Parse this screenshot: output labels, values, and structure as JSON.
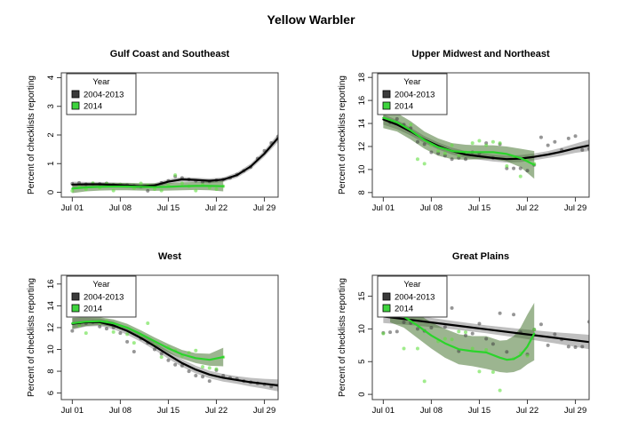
{
  "figure": {
    "title": "Yellow Warbler"
  },
  "shared": {
    "ylabel": "Percent of checklists reporting",
    "xlim": [
      -0.6,
      31
    ],
    "x_tick_days": [
      1,
      8,
      15,
      22,
      29
    ],
    "x_tick_labels": [
      "Jul 01",
      "Jul 08",
      "Jul 15",
      "Jul 22",
      "Jul 29"
    ],
    "legend": {
      "title": "Year",
      "entries": [
        {
          "label": "2004-2013",
          "color": "#3b3b3b"
        },
        {
          "label": "2014",
          "color": "#3ed43e"
        }
      ]
    },
    "colors": {
      "lineHist": "#000000",
      "line2014": "#2bd42b",
      "bandHist": "rgba(0,0,0,0.25)",
      "band2014": "rgba(58,108,34,0.5)",
      "pointHist": "rgba(64,64,64,0.55)",
      "point2014": "rgba(96,224,64,0.6)",
      "frame": "#3c3c3c"
    }
  },
  "chart_data": [
    {
      "type": "line",
      "title": "Gulf Coast and Southeast",
      "ylim": [
        -0.17,
        4.17
      ],
      "yticks": [
        0,
        1,
        2,
        3,
        4
      ],
      "series": [
        {
          "name": "2004-2013",
          "x": [
            1,
            3,
            5,
            7,
            9,
            11,
            13,
            15,
            17,
            19,
            21,
            23,
            25,
            27,
            29,
            31
          ],
          "y": [
            0.27,
            0.28,
            0.28,
            0.26,
            0.24,
            0.21,
            0.24,
            0.37,
            0.45,
            0.43,
            0.4,
            0.44,
            0.6,
            0.9,
            1.35,
            1.9
          ],
          "lo": [
            0.17,
            0.2,
            0.2,
            0.18,
            0.16,
            0.13,
            0.16,
            0.29,
            0.37,
            0.35,
            0.32,
            0.36,
            0.51,
            0.8,
            1.24,
            1.76
          ],
          "hi": [
            0.37,
            0.36,
            0.36,
            0.34,
            0.32,
            0.29,
            0.32,
            0.45,
            0.53,
            0.51,
            0.48,
            0.52,
            0.69,
            1.0,
            1.46,
            2.04
          ]
        },
        {
          "name": "2014",
          "x": [
            1,
            3,
            5,
            7,
            9,
            11,
            13,
            15,
            17,
            19,
            21,
            23
          ],
          "y": [
            0.13,
            0.17,
            0.19,
            0.2,
            0.2,
            0.19,
            0.18,
            0.19,
            0.21,
            0.22,
            0.22,
            0.21
          ],
          "lo": [
            -0.03,
            0.03,
            0.06,
            0.07,
            0.07,
            0.06,
            0.05,
            0.06,
            0.07,
            0.08,
            0.07,
            0.03
          ],
          "hi": [
            0.29,
            0.31,
            0.32,
            0.33,
            0.33,
            0.32,
            0.31,
            0.32,
            0.35,
            0.36,
            0.37,
            0.39
          ]
        }
      ],
      "points": [
        {
          "name": "2004-2013",
          "x": [
            1,
            2,
            3,
            4,
            5,
            6,
            7,
            8,
            9,
            10,
            11,
            12,
            13,
            14,
            15,
            16,
            17,
            18,
            19,
            20,
            21,
            22,
            23,
            24,
            25,
            26,
            27,
            28,
            29,
            30,
            31
          ],
          "y": [
            0.3,
            0.33,
            0.28,
            0.3,
            0.29,
            0.31,
            0.26,
            0.27,
            0.25,
            0.22,
            0.2,
            0.05,
            0.22,
            0.33,
            0.4,
            0.55,
            0.5,
            0.45,
            0.4,
            0.36,
            0.38,
            0.42,
            0.45,
            0.5,
            0.62,
            0.75,
            0.88,
            1.18,
            1.45,
            1.72,
            1.95
          ]
        },
        {
          "name": "2014",
          "x": [
            1,
            2,
            3,
            4,
            5,
            6,
            7,
            8,
            9,
            10,
            11,
            12,
            13,
            14,
            15,
            16,
            17,
            18,
            19,
            20,
            21,
            22,
            23
          ],
          "y": [
            0.05,
            0.24,
            0.1,
            0.32,
            0.16,
            0.3,
            0.06,
            0.26,
            0.21,
            0.14,
            0.31,
            0.24,
            0.11,
            0.06,
            0.25,
            0.6,
            0.31,
            0.21,
            0.06,
            0.26,
            0.16,
            0.11,
            0.21
          ]
        }
      ]
    },
    {
      "type": "line",
      "title": "Upper Midwest and Northeast",
      "ylim": [
        7.6,
        18.4
      ],
      "yticks": [
        8,
        10,
        12,
        14,
        16,
        18
      ],
      "series": [
        {
          "name": "2004-2013",
          "x": [
            1,
            3,
            5,
            7,
            9,
            11,
            13,
            15,
            17,
            19,
            21,
            23,
            25,
            27,
            29,
            31
          ],
          "y": [
            14.35,
            13.9,
            13.3,
            12.6,
            12.05,
            11.6,
            11.3,
            11.15,
            11.0,
            10.9,
            10.95,
            11.1,
            11.3,
            11.55,
            11.85,
            12.1
          ],
          "lo": [
            13.9,
            13.5,
            12.95,
            12.3,
            11.75,
            11.3,
            11.0,
            10.85,
            10.7,
            10.6,
            10.65,
            10.8,
            11.0,
            11.2,
            11.45,
            11.6
          ],
          "hi": [
            14.8,
            14.3,
            13.65,
            12.9,
            12.35,
            11.9,
            11.6,
            11.45,
            11.3,
            11.2,
            11.25,
            11.4,
            11.6,
            11.9,
            12.25,
            12.6
          ]
        },
        {
          "name": "2014",
          "x": [
            1,
            3,
            5,
            7,
            9,
            11,
            13,
            15,
            17,
            19,
            21,
            23
          ],
          "y": [
            14.5,
            14.1,
            13.4,
            12.55,
            11.95,
            11.6,
            11.5,
            11.5,
            11.5,
            11.35,
            11.0,
            10.4
          ],
          "lo": [
            13.6,
            13.3,
            12.6,
            11.8,
            11.2,
            10.9,
            10.85,
            10.9,
            10.9,
            10.7,
            10.2,
            9.2
          ],
          "hi": [
            15.4,
            14.9,
            14.2,
            13.3,
            12.7,
            12.3,
            12.15,
            12.1,
            12.1,
            12.0,
            11.8,
            11.6
          ]
        }
      ],
      "points": [
        {
          "name": "2004-2013",
          "x": [
            2,
            3,
            4,
            5,
            6,
            7,
            8,
            9,
            10,
            11,
            12,
            13,
            14,
            15,
            16,
            17,
            18,
            19,
            20,
            21,
            22,
            23,
            24,
            25,
            26,
            27,
            28,
            29,
            30,
            31
          ],
          "y": [
            14.1,
            14.4,
            13.9,
            13.6,
            12.4,
            12.2,
            11.5,
            11.4,
            11.2,
            10.9,
            11.0,
            10.9,
            11.5,
            11.4,
            12.3,
            11.0,
            12.2,
            10.1,
            10.1,
            10.1,
            9.9,
            10.4,
            12.8,
            12.1,
            12.4,
            11.7,
            12.7,
            12.9,
            11.7,
            11.8
          ]
        },
        {
          "name": "2014",
          "x": [
            5,
            6,
            7,
            8,
            9,
            10,
            11,
            12,
            13,
            14,
            15,
            16,
            17,
            18,
            19,
            20,
            21,
            22,
            23
          ],
          "y": [
            13.9,
            10.9,
            10.5,
            12.1,
            11.6,
            11.4,
            12.1,
            11.2,
            11.5,
            12.3,
            12.5,
            12.1,
            12.4,
            12.3,
            10.3,
            11.0,
            9.4,
            10.8,
            10.5
          ]
        }
      ]
    },
    {
      "type": "line",
      "title": "West",
      "ylim": [
        5.4,
        16.8
      ],
      "yticks": [
        6,
        8,
        10,
        12,
        14,
        16
      ],
      "series": [
        {
          "name": "2004-2013",
          "x": [
            1,
            3,
            5,
            7,
            9,
            11,
            13,
            15,
            17,
            19,
            21,
            23,
            25,
            27,
            29,
            31
          ],
          "y": [
            12.35,
            12.5,
            12.5,
            12.2,
            11.7,
            11.05,
            10.3,
            9.5,
            8.75,
            8.15,
            7.7,
            7.4,
            7.2,
            7.0,
            6.85,
            6.7
          ],
          "lo": [
            11.8,
            12.1,
            12.15,
            11.85,
            11.35,
            10.7,
            9.95,
            9.15,
            8.4,
            7.8,
            7.35,
            7.05,
            6.85,
            6.6,
            6.4,
            6.15
          ],
          "hi": [
            12.9,
            12.9,
            12.85,
            12.55,
            12.05,
            11.4,
            10.65,
            9.85,
            9.1,
            8.5,
            8.05,
            7.75,
            7.55,
            7.4,
            7.3,
            7.25
          ]
        },
        {
          "name": "2014",
          "x": [
            1,
            3,
            5,
            7,
            9,
            11,
            13,
            15,
            17,
            19,
            21,
            23
          ],
          "y": [
            12.4,
            12.55,
            12.6,
            12.4,
            12.0,
            11.4,
            10.75,
            10.1,
            9.55,
            9.2,
            9.05,
            9.3
          ],
          "lo": [
            11.9,
            12.15,
            12.25,
            12.05,
            11.65,
            11.05,
            10.4,
            9.7,
            9.15,
            8.75,
            8.5,
            8.45
          ],
          "hi": [
            12.9,
            12.95,
            12.95,
            12.75,
            12.35,
            11.75,
            11.1,
            10.5,
            9.95,
            9.65,
            9.6,
            10.15
          ]
        }
      ],
      "points": [
        {
          "name": "2004-2013",
          "x": [
            1,
            2,
            3,
            4,
            5,
            6,
            7,
            8,
            9,
            10,
            11,
            12,
            13,
            14,
            15,
            16,
            17,
            18,
            19,
            20,
            21,
            22,
            23,
            24,
            25,
            26,
            27,
            28,
            29,
            30,
            31
          ],
          "y": [
            11.7,
            12.3,
            12.4,
            12.5,
            12.1,
            11.9,
            12.0,
            11.5,
            10.7,
            9.8,
            11.0,
            10.6,
            10.0,
            9.6,
            9.0,
            8.6,
            8.5,
            8.0,
            7.6,
            7.5,
            7.1,
            8.1,
            7.6,
            7.4,
            7.3,
            7.1,
            7.0,
            6.9,
            6.8,
            6.6,
            6.7
          ]
        },
        {
          "name": "2014",
          "x": [
            2,
            3,
            5,
            6,
            7,
            8,
            9,
            10,
            11,
            12,
            13,
            14,
            15,
            16,
            17,
            18,
            19,
            20,
            21,
            22,
            23
          ],
          "y": [
            12.2,
            11.5,
            12.4,
            12.6,
            11.6,
            12.0,
            11.4,
            10.6,
            11.2,
            12.4,
            10.4,
            9.3,
            10.2,
            9.9,
            9.4,
            9.7,
            9.9,
            8.4,
            8.3,
            8.2,
            9.3
          ]
        }
      ]
    },
    {
      "type": "line",
      "title": "Great Plains",
      "ylim": [
        -0.8,
        18.2
      ],
      "yticks": [
        0,
        5,
        10,
        15
      ],
      "series": [
        {
          "name": "2004-2013",
          "x": [
            1,
            6,
            11,
            16,
            21,
            26,
            31
          ],
          "y": [
            11.9,
            11.25,
            10.6,
            9.95,
            9.3,
            8.65,
            8.0
          ],
          "lo": [
            10.9,
            10.5,
            9.95,
            9.35,
            8.6,
            7.8,
            6.9
          ],
          "hi": [
            12.9,
            12.0,
            11.25,
            10.55,
            10.0,
            9.5,
            9.1
          ]
        },
        {
          "name": "2014",
          "x": [
            2,
            4,
            6,
            8,
            10,
            12,
            14,
            16,
            18,
            19,
            20,
            21,
            22,
            23
          ],
          "y": [
            12.8,
            11.9,
            10.5,
            9.0,
            7.8,
            6.9,
            6.6,
            6.4,
            5.6,
            5.3,
            5.4,
            6.0,
            7.3,
            9.3
          ],
          "lo": [
            11.0,
            10.2,
            8.6,
            7.0,
            5.6,
            4.6,
            4.3,
            3.9,
            3.4,
            3.3,
            3.4,
            3.8,
            4.6,
            5.2
          ],
          "hi": [
            14.2,
            13.5,
            12.3,
            11.0,
            10.0,
            9.2,
            8.9,
            8.9,
            8.2,
            8.3,
            8.9,
            10.2,
            12.2,
            14.0
          ]
        }
      ],
      "points": [
        {
          "name": "2004-2013",
          "x": [
            1,
            2,
            3,
            4,
            5,
            6,
            7,
            8,
            9,
            10,
            11,
            12,
            13,
            14,
            15,
            16,
            17,
            18,
            19,
            20,
            21,
            22,
            23,
            24,
            25,
            26,
            27,
            28,
            29,
            30,
            31
          ],
          "y": [
            9.4,
            9.5,
            9.6,
            11.0,
            10.9,
            10.0,
            9.7,
            10.2,
            13.8,
            10.3,
            13.2,
            6.6,
            9.0,
            9.3,
            10.8,
            8.5,
            7.7,
            12.4,
            6.5,
            12.2,
            9.5,
            6.1,
            9.9,
            10.7,
            7.5,
            9.2,
            8.4,
            7.3,
            7.2,
            7.3,
            11.1
          ]
        },
        {
          "name": "2014",
          "x": [
            1,
            4,
            6,
            7,
            9,
            10,
            11,
            12,
            13,
            14,
            15,
            16,
            17,
            18,
            20,
            21,
            22,
            23
          ],
          "y": [
            9.3,
            7.0,
            7.0,
            2.0,
            8.1,
            8.5,
            8.4,
            9.6,
            9.5,
            7.0,
            3.5,
            6.8,
            3.4,
            0.6,
            5.5,
            6.3,
            5.9,
            9.9
          ]
        }
      ]
    }
  ]
}
